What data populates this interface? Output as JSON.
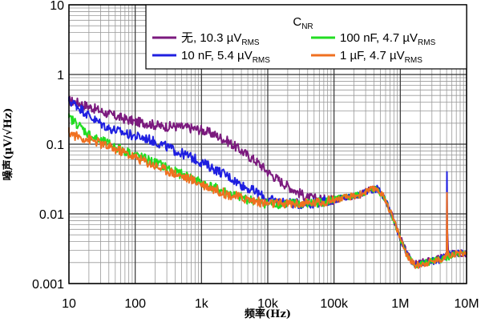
{
  "chart_data": {
    "type": "line",
    "xscale": "log",
    "yscale": "log",
    "xlim": [
      10,
      10000000
    ],
    "ylim": [
      0.001,
      10
    ],
    "xlabel": "频率(Hz)",
    "ylabel": "噪声(µV/√Hz)",
    "x_tick_labels": [
      "10",
      "100",
      "1k",
      "10k",
      "100k",
      "1M",
      "10M"
    ],
    "y_tick_labels": [
      "0.001",
      "0.01",
      "0.1",
      "1",
      "10"
    ],
    "legend_title": "C",
    "legend_title_sub": "NR",
    "grid": true,
    "series": [
      {
        "name": "无",
        "rms_value": "10.3 µV",
        "rms_sub": "RMS",
        "color": "#7b1a7e",
        "x": [
          10,
          13,
          18,
          25,
          40,
          60,
          100,
          150,
          250,
          400,
          700,
          1000,
          1500,
          2500,
          4000,
          7000,
          10000,
          15000,
          25000,
          40000,
          70000,
          100000,
          150000,
          250000,
          350000,
          450000,
          600000,
          800000,
          1000000,
          1300000,
          1700000,
          2500000,
          4000000,
          5000000,
          5100000,
          5300000,
          7000000,
          10000000
        ],
        "y": [
          0.42,
          0.4,
          0.36,
          0.32,
          0.27,
          0.24,
          0.21,
          0.2,
          0.18,
          0.18,
          0.17,
          0.16,
          0.14,
          0.11,
          0.08,
          0.055,
          0.04,
          0.03,
          0.022,
          0.017,
          0.016,
          0.016,
          0.017,
          0.019,
          0.022,
          0.023,
          0.016,
          0.008,
          0.0045,
          0.0025,
          0.0019,
          0.0021,
          0.0023,
          0.0026,
          0.007,
          0.0026,
          0.0027,
          0.0027
        ]
      },
      {
        "name": "10 nF",
        "rms_value": "5.4 µV",
        "rms_sub": "RMS",
        "color": "#1f1fe0",
        "x": [
          10,
          13,
          18,
          25,
          40,
          60,
          100,
          150,
          250,
          400,
          700,
          1000,
          1500,
          2500,
          4000,
          7000,
          10000,
          15000,
          25000,
          40000,
          70000,
          100000,
          150000,
          250000,
          350000,
          450000,
          600000,
          800000,
          1000000,
          1300000,
          1700000,
          2500000,
          4000000,
          5000000,
          5050000,
          5150000,
          7000000,
          10000000
        ],
        "y": [
          0.42,
          0.36,
          0.28,
          0.22,
          0.17,
          0.15,
          0.13,
          0.12,
          0.1,
          0.08,
          0.065,
          0.055,
          0.045,
          0.035,
          0.026,
          0.02,
          0.016,
          0.015,
          0.014,
          0.014,
          0.015,
          0.016,
          0.017,
          0.019,
          0.022,
          0.023,
          0.016,
          0.008,
          0.0045,
          0.0024,
          0.0018,
          0.002,
          0.0022,
          0.0025,
          0.04,
          0.0026,
          0.0027,
          0.0027
        ]
      },
      {
        "name": "100 nF",
        "rms_value": "4.7 µV",
        "rms_sub": "RMS",
        "color": "#22dd22",
        "x": [
          10,
          13,
          18,
          25,
          40,
          60,
          100,
          150,
          250,
          400,
          700,
          1000,
          1500,
          2500,
          4000,
          7000,
          10000,
          15000,
          25000,
          40000,
          70000,
          100000,
          150000,
          250000,
          350000,
          450000,
          600000,
          800000,
          1000000,
          1300000,
          1700000,
          2500000,
          4000000,
          5000000,
          5100000,
          5300000,
          7000000,
          10000000
        ],
        "y": [
          0.24,
          0.2,
          0.15,
          0.12,
          0.1,
          0.085,
          0.07,
          0.06,
          0.05,
          0.04,
          0.033,
          0.028,
          0.024,
          0.02,
          0.017,
          0.015,
          0.014,
          0.014,
          0.014,
          0.014,
          0.015,
          0.016,
          0.017,
          0.019,
          0.022,
          0.023,
          0.016,
          0.008,
          0.0045,
          0.0024,
          0.0018,
          0.002,
          0.0022,
          0.0024,
          0.0025,
          0.0024,
          0.0026,
          0.0026
        ]
      },
      {
        "name": "1 µF",
        "rms_value": "4.7  µV",
        "rms_sub": "RMS",
        "color": "#f07020",
        "x": [
          10,
          13,
          18,
          25,
          40,
          60,
          100,
          150,
          250,
          400,
          700,
          1000,
          1500,
          2500,
          4000,
          7000,
          10000,
          15000,
          25000,
          40000,
          70000,
          100000,
          150000,
          250000,
          350000,
          450000,
          600000,
          800000,
          1000000,
          1300000,
          1700000,
          2500000,
          4000000,
          5000000,
          5050000,
          5150000,
          7000000,
          10000000
        ],
        "y": [
          0.15,
          0.13,
          0.12,
          0.11,
          0.09,
          0.08,
          0.065,
          0.055,
          0.045,
          0.038,
          0.031,
          0.027,
          0.023,
          0.019,
          0.017,
          0.015,
          0.014,
          0.014,
          0.014,
          0.014,
          0.015,
          0.016,
          0.017,
          0.019,
          0.022,
          0.023,
          0.016,
          0.008,
          0.0045,
          0.0024,
          0.0018,
          0.002,
          0.0022,
          0.0025,
          0.02,
          0.0026,
          0.0027,
          0.0027
        ]
      }
    ]
  }
}
